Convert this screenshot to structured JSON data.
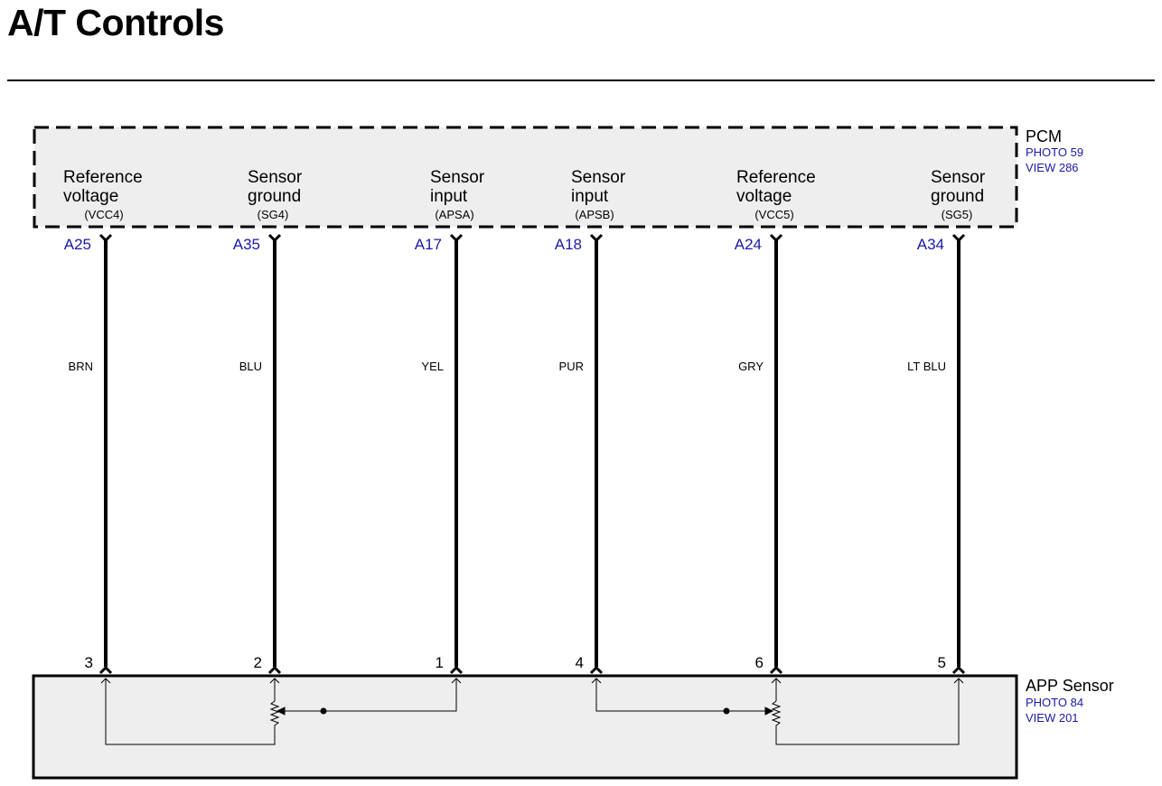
{
  "title": "A/T Controls",
  "pcm": {
    "name": "PCM",
    "photo": "PHOTO 59",
    "view": "VIEW 286",
    "terminals": [
      {
        "line1": "Reference",
        "line2": "voltage",
        "signal": "(VCC4)",
        "pin": "A25",
        "wire": "BRN",
        "sensor_pin": "3"
      },
      {
        "line1": "Sensor",
        "line2": "ground",
        "signal": "(SG4)",
        "pin": "A35",
        "wire": "BLU",
        "sensor_pin": "2"
      },
      {
        "line1": "Sensor",
        "line2": "input",
        "signal": "(APSA)",
        "pin": "A17",
        "wire": "YEL",
        "sensor_pin": "1"
      },
      {
        "line1": "Sensor",
        "line2": "input",
        "signal": "(APSB)",
        "pin": "A18",
        "wire": "PUR",
        "sensor_pin": "4"
      },
      {
        "line1": "Reference",
        "line2": "voltage",
        "signal": "(VCC5)",
        "pin": "A24",
        "wire": "GRY",
        "sensor_pin": "6"
      },
      {
        "line1": "Sensor",
        "line2": "ground",
        "signal": "(SG5)",
        "pin": "A34",
        "wire": "LT BLU",
        "sensor_pin": "5"
      }
    ]
  },
  "app_sensor": {
    "name": "APP Sensor",
    "photo": "PHOTO 84",
    "view": "VIEW 201"
  },
  "colors": {
    "box_fill": "#eeeeee",
    "pin_label": "#1a1aa8",
    "wire": "#000000"
  }
}
